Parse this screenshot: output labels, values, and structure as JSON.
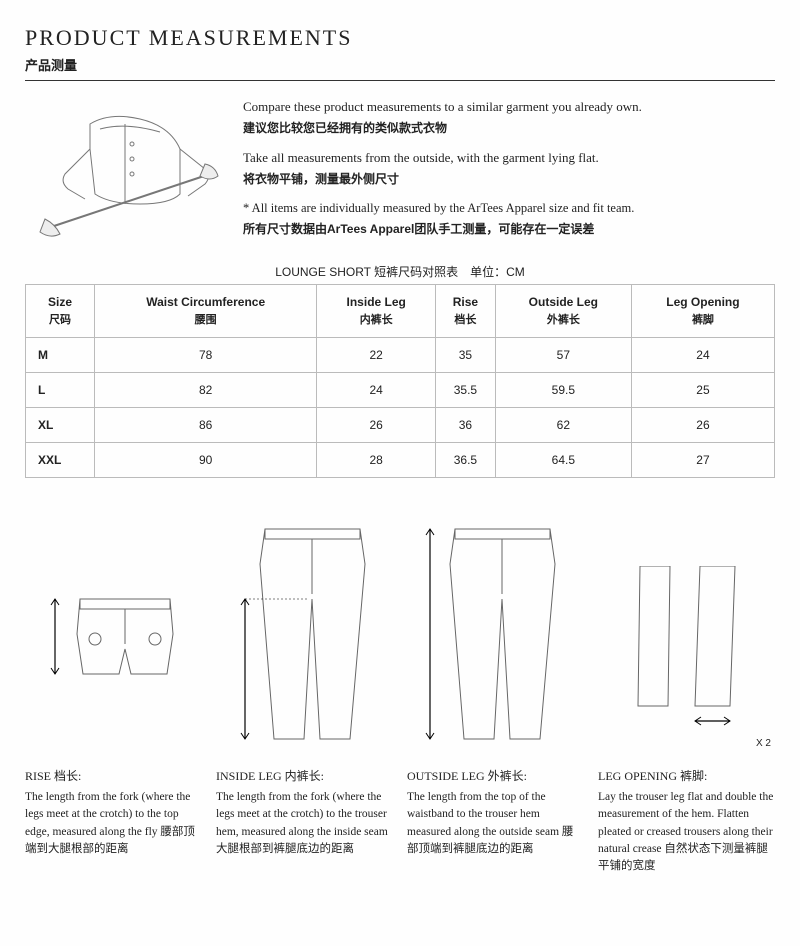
{
  "header": {
    "title_en": "PRODUCT MEASUREMENTS",
    "title_cn": "产品测量"
  },
  "intro": {
    "line1_en": "Compare these product measurements to a similar garment you already own.",
    "line1_cn": "建议您比较您已经拥有的类似款式衣物",
    "line2_en": "Take all measurements from the outside, with the garment lying flat.",
    "line2_cn": "将衣物平铺，测量最外侧尺寸",
    "note_en": "* All items are individually measured by the ArTees Apparel size and fit team.",
    "note_cn": "所有尺寸数据由ArTees Apparel团队手工测量，可能存在一定误差"
  },
  "table": {
    "caption": "LOUNGE SHORT 短裤尺码对照表　单位：CM",
    "columns": [
      {
        "en": "Size",
        "cn": "尺码"
      },
      {
        "en": "Waist Circumference",
        "cn": "腰围"
      },
      {
        "en": "Inside Leg",
        "cn": "内裤长"
      },
      {
        "en": "Rise",
        "cn": "档长"
      },
      {
        "en": "Outside Leg",
        "cn": "外裤长"
      },
      {
        "en": "Leg Opening",
        "cn": "裤脚"
      }
    ],
    "rows": [
      [
        "M",
        "78",
        "22",
        "35",
        "57",
        "24"
      ],
      [
        "L",
        "82",
        "24",
        "35.5",
        "59.5",
        "25"
      ],
      [
        "XL",
        "86",
        "26",
        "36",
        "62",
        "26"
      ],
      [
        "XXL",
        "90",
        "28",
        "36.5",
        "64.5",
        "27"
      ]
    ]
  },
  "diagrams": {
    "x2_label": "X 2"
  },
  "definitions": [
    {
      "title": "RISE 档长:",
      "text": "The length from the fork (where the legs meet at the crotch) to the top edge, measured along the fly 腰部顶端到大腿根部的距离"
    },
    {
      "title": "INSIDE LEG 内裤长:",
      "text": "The length from the fork (where the legs meet at the crotch) to the trouser hem, measured along the inside seam 大腿根部到裤腿底边的距离"
    },
    {
      "title": "OUTSIDE LEG 外裤长:",
      "text": "The length from the top of the waistband to the trouser hem measured along the outside seam 腰部顶端到裤腿底边的距离"
    },
    {
      "title": "LEG OPENING 裤脚:",
      "text": "Lay the trouser leg flat and double the measurement of the hem. Flatten pleated or creased trousers along their natural crease 自然状态下测量裤腿平铺的宽度"
    }
  ],
  "colors": {
    "border": "#bbbbbb",
    "text": "#222222",
    "sketch": "#888888"
  }
}
